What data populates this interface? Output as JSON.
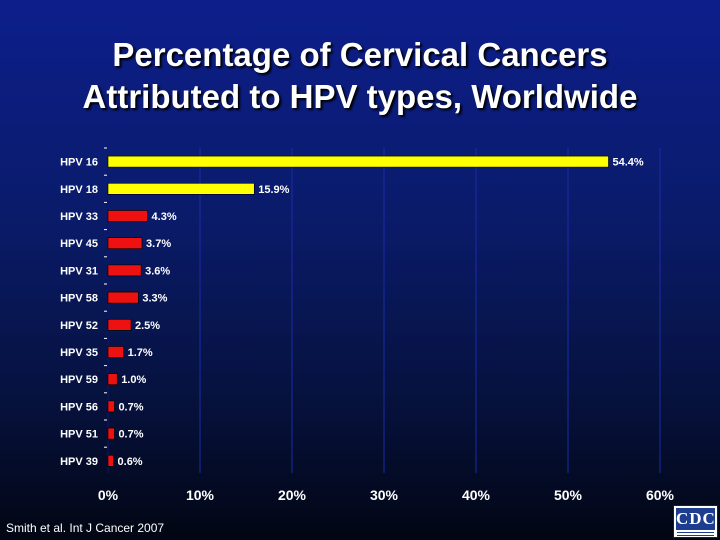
{
  "slide": {
    "title_line1": "Percentage of Cervical Cancers",
    "title_line2": "Attributed to HPV types, Worldwide",
    "source": "Smith et al.  Int J Cancer 2007",
    "logo_text": "CDC"
  },
  "colors": {
    "highlight_bar": "#ffff00",
    "standard_bar": "#ee1111",
    "gridline": "#1a2ba8",
    "text": "#ffffff"
  },
  "chart_data": {
    "type": "bar",
    "orientation": "horizontal",
    "categories": [
      "HPV 16",
      "HPV 18",
      "HPV 33",
      "HPV 45",
      "HPV 31",
      "HPV 58",
      "HPV 52",
      "HPV 35",
      "HPV 59",
      "HPV 56",
      "HPV 51",
      "HPV 39"
    ],
    "values": [
      54.4,
      15.9,
      4.3,
      3.7,
      3.6,
      3.3,
      2.5,
      1.7,
      1.0,
      0.7,
      0.7,
      0.6
    ],
    "value_labels": [
      "54.4%",
      "15.9%",
      "4.3%",
      "3.7%",
      "3.6%",
      "3.3%",
      "2.5%",
      "1.7%",
      "1.0%",
      "0.7%",
      "0.7%",
      "0.6%"
    ],
    "highlighted": [
      true,
      true,
      false,
      false,
      false,
      false,
      false,
      false,
      false,
      false,
      false,
      false
    ],
    "x_ticks": [
      0,
      10,
      20,
      30,
      40,
      50,
      60
    ],
    "x_tick_labels": [
      "0%",
      "10%",
      "20%",
      "30%",
      "40%",
      "50%",
      "60%"
    ],
    "xlim": [
      0,
      60
    ],
    "title": "Percentage of Cervical Cancers Attributed to HPV types, Worldwide",
    "xlabel": "",
    "ylabel": "",
    "grid": true
  }
}
